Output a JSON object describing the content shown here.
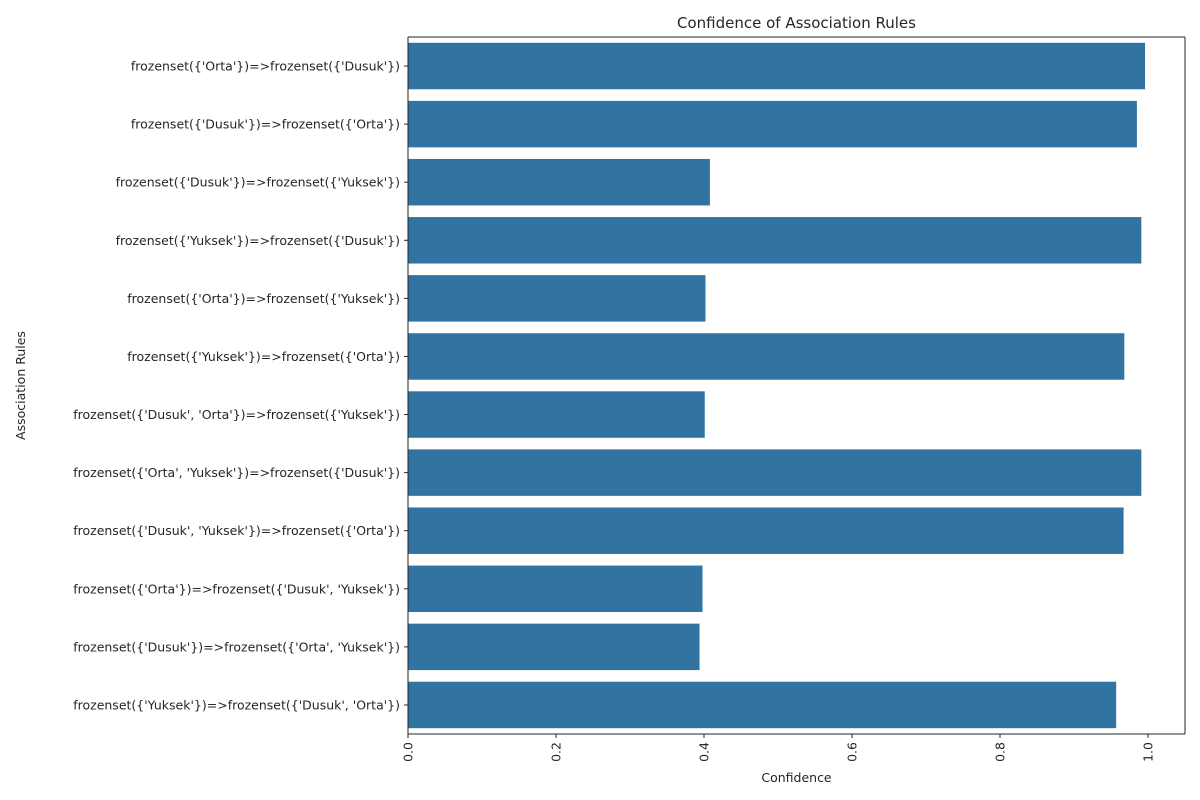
{
  "chart_data": {
    "type": "bar",
    "orientation": "horizontal",
    "title": "Confidence of Association Rules",
    "xlabel": "Confidence",
    "ylabel": "Association Rules",
    "xlim": [
      0,
      1.05
    ],
    "xticks": [
      "0.0",
      "0.2",
      "0.4",
      "0.6",
      "0.8",
      "1.0"
    ],
    "x_tick_rotation": 90,
    "bar_color": "#3274a1",
    "grid": false,
    "categories": [
      "frozenset({'Orta'})=>frozenset({'Dusuk'})",
      "frozenset({'Dusuk'})=>frozenset({'Orta'})",
      "frozenset({'Dusuk'})=>frozenset({'Yuksek'})",
      "frozenset({'Yuksek'})=>frozenset({'Dusuk'})",
      "frozenset({'Orta'})=>frozenset({'Yuksek'})",
      "frozenset({'Yuksek'})=>frozenset({'Orta'})",
      "frozenset({'Dusuk', 'Orta'})=>frozenset({'Yuksek'})",
      "frozenset({'Orta', 'Yuksek'})=>frozenset({'Dusuk'})",
      "frozenset({'Dusuk', 'Yuksek'})=>frozenset({'Orta'})",
      "frozenset({'Orta'})=>frozenset({'Dusuk', 'Yuksek'})",
      "frozenset({'Dusuk'})=>frozenset({'Orta', 'Yuksek'})",
      "frozenset({'Yuksek'})=>frozenset({'Dusuk', 'Orta'})"
    ],
    "values": [
      0.996,
      0.985,
      0.408,
      0.991,
      0.402,
      0.968,
      0.401,
      0.991,
      0.967,
      0.398,
      0.394,
      0.957
    ]
  }
}
